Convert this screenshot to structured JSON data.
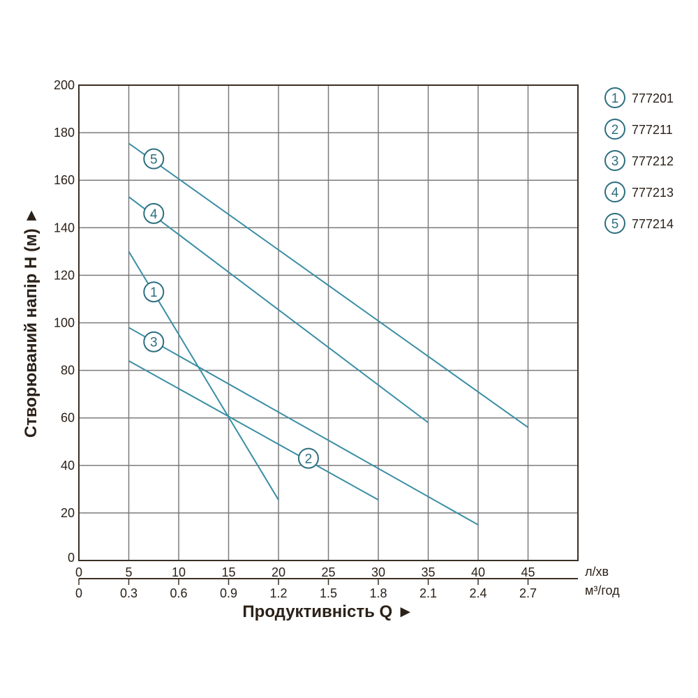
{
  "chart_data": {
    "type": "line",
    "xlabel": "Продуктивність  Q ►",
    "ylabel": "Створюваний напір H (м) ►",
    "x_unit": "л/хв",
    "x2_unit": "м³/год",
    "xlim": [
      0,
      50
    ],
    "ylim": [
      0,
      200
    ],
    "grid": true,
    "legend_position": "right",
    "x_ticks": [
      "0",
      "5",
      "10",
      "15",
      "20",
      "25",
      "30",
      "35",
      "40",
      "45"
    ],
    "x_tick_values": [
      0,
      5,
      10,
      15,
      20,
      25,
      30,
      35,
      40,
      45
    ],
    "x2_ticks": [
      "0",
      "0.3",
      "0.6",
      "0.9",
      "1.2",
      "1.5",
      "1.8",
      "2.1",
      "2.4",
      "2.7"
    ],
    "y_ticks": [
      "0",
      "20",
      "40",
      "60",
      "80",
      "100",
      "120",
      "140",
      "160",
      "180",
      "200"
    ],
    "y_tick_values": [
      0,
      20,
      40,
      60,
      80,
      100,
      120,
      140,
      160,
      180,
      200
    ],
    "series_color": "#3a8ea4",
    "series": [
      {
        "id": "1",
        "name": "777201",
        "x": [
          5,
          20
        ],
        "y": [
          130,
          25.5
        ],
        "label_at": [
          7.5,
          113
        ]
      },
      {
        "id": "2",
        "name": "777211",
        "x": [
          5,
          30
        ],
        "y": [
          84,
          25.5
        ],
        "label_at": [
          23,
          43
        ]
      },
      {
        "id": "3",
        "name": "777212",
        "x": [
          5,
          40
        ],
        "y": [
          98,
          15
        ],
        "label_at": [
          7.5,
          92
        ]
      },
      {
        "id": "4",
        "name": "777213",
        "x": [
          5,
          35
        ],
        "y": [
          153,
          58
        ],
        "label_at": [
          7.5,
          146
        ]
      },
      {
        "id": "5",
        "name": "777214",
        "x": [
          5,
          45
        ],
        "y": [
          175.5,
          56
        ],
        "label_at": [
          7.5,
          169
        ]
      }
    ]
  }
}
